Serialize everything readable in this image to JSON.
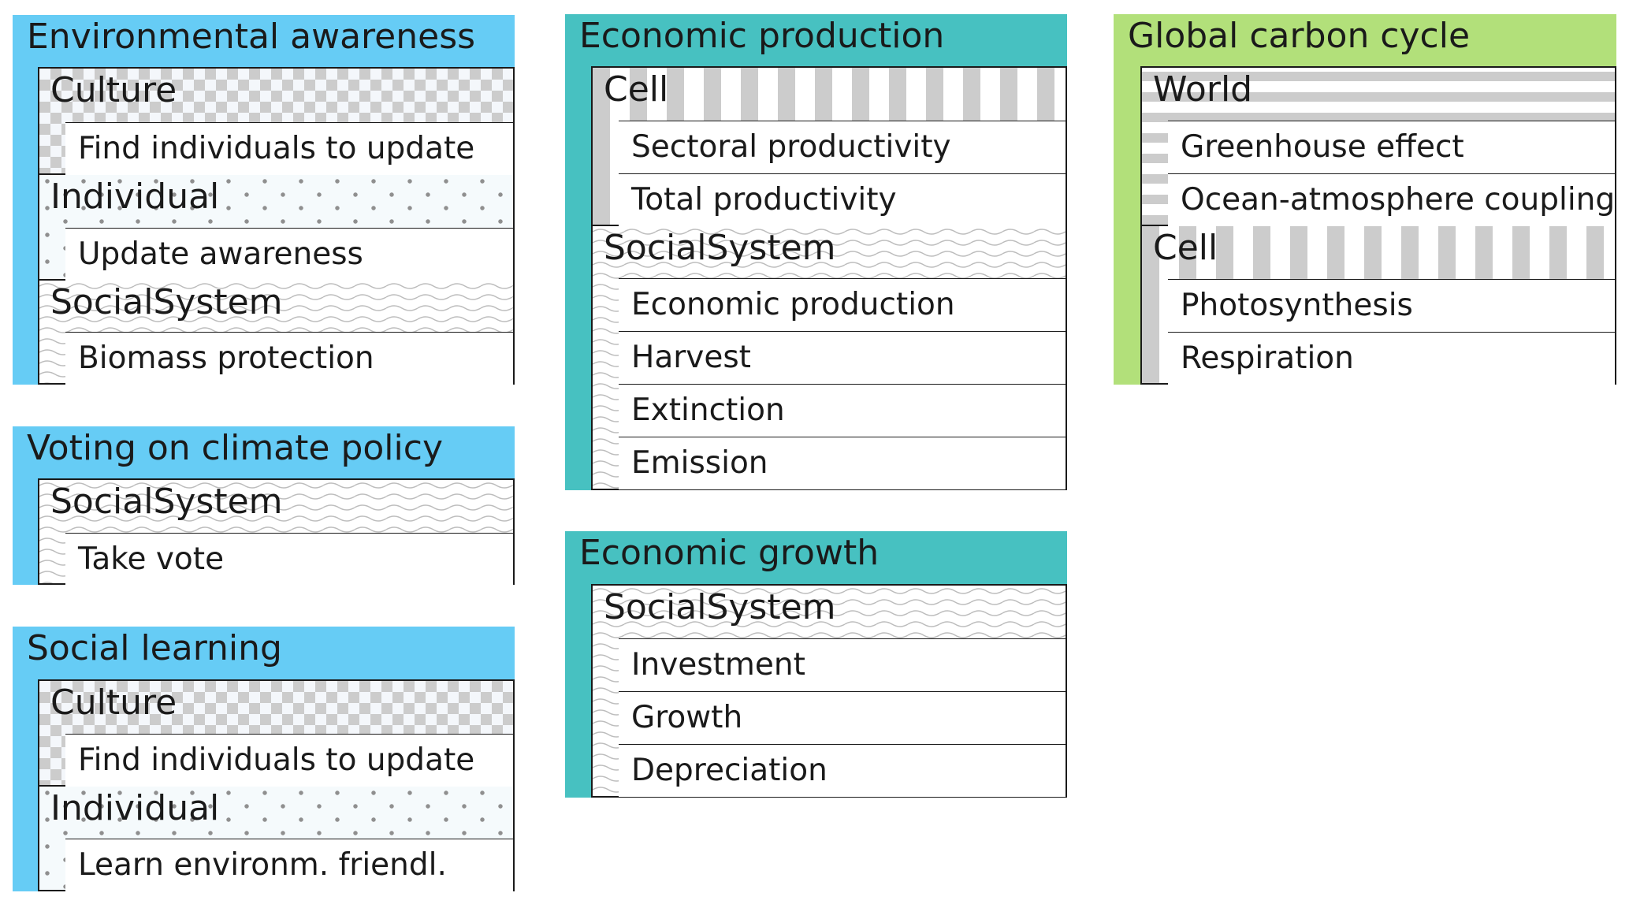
{
  "modules": {
    "env_awareness": {
      "title": "Environmental awareness",
      "culture": {
        "label": "Culture",
        "processes": [
          "Find individuals to update"
        ]
      },
      "individual": {
        "label": "Individual",
        "processes": [
          "Update awareness"
        ]
      },
      "social": {
        "label": "SocialSystem",
        "processes": [
          "Biomass protection"
        ]
      }
    },
    "voting": {
      "title": "Voting on climate policy",
      "social": {
        "label": "SocialSystem",
        "processes": [
          "Take vote"
        ]
      }
    },
    "social_learning": {
      "title": "Social learning",
      "culture": {
        "label": "Culture",
        "processes": [
          "Find individuals to update"
        ]
      },
      "individual": {
        "label": "Individual",
        "processes": [
          "Learn environm. friendl."
        ]
      }
    },
    "econ_production": {
      "title": "Economic production",
      "cell": {
        "label": "Cell",
        "processes": [
          "Sectoral productivity",
          "Total productivity"
        ]
      },
      "social": {
        "label": "SocialSystem",
        "processes": [
          "Economic production",
          "Harvest",
          "Extinction",
          "Emission"
        ]
      }
    },
    "econ_growth": {
      "title": "Economic growth",
      "social": {
        "label": "SocialSystem",
        "processes": [
          "Investment",
          "Growth",
          "Depreciation"
        ]
      }
    },
    "carbon_cycle": {
      "title": "Global carbon cycle",
      "world": {
        "label": "World",
        "processes": [
          "Greenhouse effect",
          "Ocean-atmosphere coupling"
        ]
      },
      "cell": {
        "label": "Cell",
        "processes": [
          "Photosynthesis",
          "Respiration"
        ]
      }
    }
  },
  "colors": {
    "blue_module": "#66ccf5",
    "teal_module": "#47c1c1",
    "green_module": "#b2e07a"
  }
}
